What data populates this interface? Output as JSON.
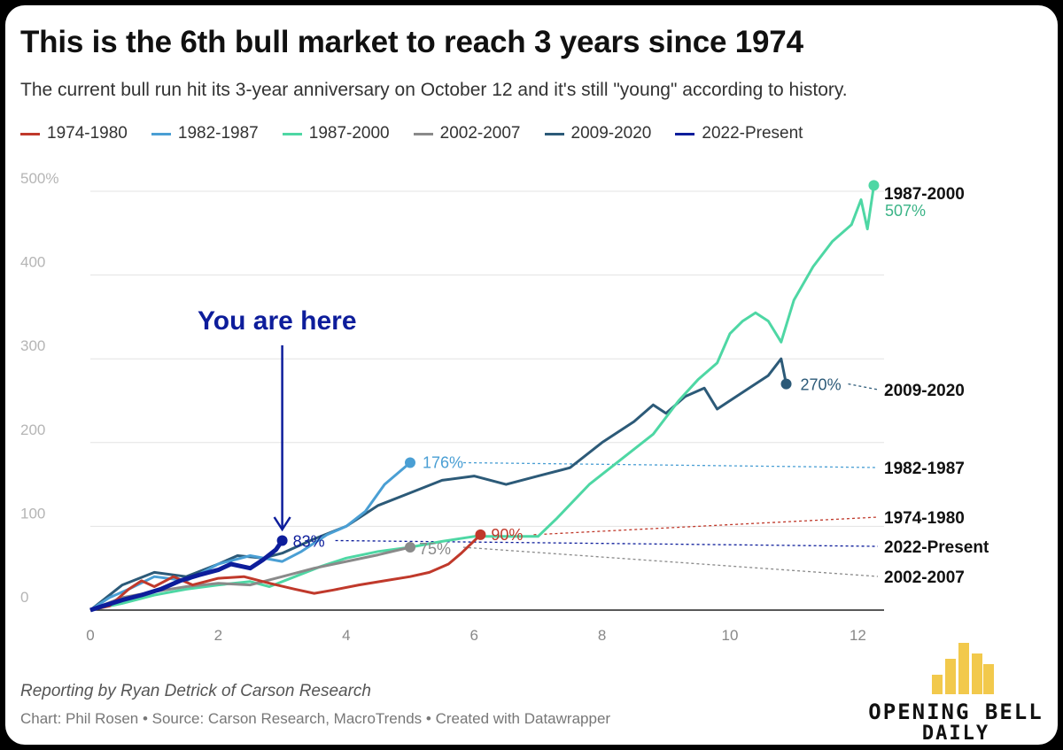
{
  "header": {
    "title": "This is the 6th bull market to reach 3 years since 1974",
    "subtitle": "The current bull run hit its 3-year anniversary on October 12 and it's still \"young\" according to history."
  },
  "footer": {
    "credit": "Reporting by Ryan Detrick of Carson Research",
    "source": "Chart: Phil Rosen • Source: Carson Research, MacroTrends • Created with Datawrapper"
  },
  "logo": {
    "line1": "OPENING BELL",
    "line2": "DAILY",
    "icon": "bar-chart-logo-icon",
    "color": "#f2c94c"
  },
  "chart_data": {
    "type": "line",
    "title": "This is the 6th bull market to reach 3 years since 1974",
    "subtitle": "The current bull run hit its 3-year anniversary on October 12 and it's still \"young\" according to history.",
    "xlabel": "",
    "ylabel": "",
    "xlim": [
      0,
      12.3
    ],
    "ylim": [
      0,
      500
    ],
    "x_ticks": [
      0,
      2,
      4,
      6,
      8,
      10,
      12
    ],
    "y_ticks": [
      {
        "value": 0,
        "label": "0"
      },
      {
        "value": 100,
        "label": "100"
      },
      {
        "value": 200,
        "label": "200"
      },
      {
        "value": 300,
        "label": "300"
      },
      {
        "value": 400,
        "label": "400"
      },
      {
        "value": 500,
        "label": "500%"
      }
    ],
    "grid": true,
    "legend_position": "top-left",
    "annotation": {
      "text": "You are here",
      "x": 3,
      "y": 83,
      "color": "#0d1d9b"
    },
    "series": [
      {
        "name": "1974-1980",
        "color": "#c0392b",
        "width": 3,
        "end_label": "90%",
        "right_label": "1974-1980",
        "projection_value": 118,
        "points": [
          [
            0,
            0
          ],
          [
            0.3,
            5
          ],
          [
            0.6,
            25
          ],
          [
            0.8,
            35
          ],
          [
            1,
            28
          ],
          [
            1.3,
            40
          ],
          [
            1.6,
            30
          ],
          [
            2,
            38
          ],
          [
            2.4,
            40
          ],
          [
            2.8,
            32
          ],
          [
            3.2,
            25
          ],
          [
            3.5,
            20
          ],
          [
            3.8,
            24
          ],
          [
            4.2,
            30
          ],
          [
            4.6,
            35
          ],
          [
            5,
            40
          ],
          [
            5.3,
            45
          ],
          [
            5.6,
            55
          ],
          [
            5.8,
            68
          ],
          [
            6.1,
            90
          ]
        ]
      },
      {
        "name": "1982-1987",
        "color": "#4a9fd4",
        "width": 3,
        "end_label": "176%",
        "right_label": "1982-1987",
        "projection_value": 176,
        "points": [
          [
            0,
            0
          ],
          [
            0.3,
            15
          ],
          [
            0.6,
            25
          ],
          [
            1,
            40
          ],
          [
            1.5,
            35
          ],
          [
            2,
            55
          ],
          [
            2.5,
            65
          ],
          [
            3,
            58
          ],
          [
            3.3,
            70
          ],
          [
            3.7,
            90
          ],
          [
            4,
            100
          ],
          [
            4.3,
            118
          ],
          [
            4.6,
            150
          ],
          [
            5,
            176
          ]
        ]
      },
      {
        "name": "1987-2000",
        "color": "#4ed7a4",
        "width": 3,
        "end_label": "507%",
        "right_label": "1987-2000",
        "projection_value": 507,
        "points": [
          [
            0,
            0
          ],
          [
            0.5,
            8
          ],
          [
            1,
            18
          ],
          [
            1.5,
            25
          ],
          [
            2,
            30
          ],
          [
            2.5,
            34
          ],
          [
            2.8,
            28
          ],
          [
            3.2,
            40
          ],
          [
            3.6,
            52
          ],
          [
            4,
            62
          ],
          [
            4.5,
            70
          ],
          [
            5,
            75
          ],
          [
            5.5,
            82
          ],
          [
            6,
            88
          ],
          [
            6.5,
            88
          ],
          [
            7,
            88
          ],
          [
            7.3,
            110
          ],
          [
            7.8,
            150
          ],
          [
            8.3,
            180
          ],
          [
            8.8,
            210
          ],
          [
            9.2,
            250
          ],
          [
            9.5,
            275
          ],
          [
            9.8,
            295
          ],
          [
            10,
            330
          ],
          [
            10.2,
            345
          ],
          [
            10.4,
            355
          ],
          [
            10.6,
            345
          ],
          [
            10.8,
            320
          ],
          [
            11,
            370
          ],
          [
            11.3,
            410
          ],
          [
            11.6,
            440
          ],
          [
            11.9,
            460
          ],
          [
            12.05,
            490
          ],
          [
            12.15,
            455
          ],
          [
            12.25,
            507
          ]
        ]
      },
      {
        "name": "2002-2007",
        "color": "#8a8a8a",
        "width": 3,
        "end_label": "75%",
        "right_label": "2002-2007",
        "projection_value": 47,
        "points": [
          [
            0,
            0
          ],
          [
            0.5,
            15
          ],
          [
            1,
            22
          ],
          [
            1.5,
            28
          ],
          [
            2,
            32
          ],
          [
            2.5,
            30
          ],
          [
            3,
            40
          ],
          [
            3.5,
            50
          ],
          [
            4,
            58
          ],
          [
            4.5,
            66
          ],
          [
            5,
            75
          ]
        ]
      },
      {
        "name": "2009-2020",
        "color": "#2c5a78",
        "width": 3,
        "end_label": "270%",
        "right_label": "2009-2020",
        "projection_value": 270,
        "points": [
          [
            0,
            0
          ],
          [
            0.5,
            30
          ],
          [
            1,
            45
          ],
          [
            1.5,
            40
          ],
          [
            2,
            55
          ],
          [
            2.3,
            65
          ],
          [
            2.7,
            62
          ],
          [
            3,
            68
          ],
          [
            3.5,
            85
          ],
          [
            4,
            100
          ],
          [
            4.5,
            125
          ],
          [
            5,
            140
          ],
          [
            5.5,
            155
          ],
          [
            6,
            160
          ],
          [
            6.5,
            150
          ],
          [
            7,
            160
          ],
          [
            7.5,
            170
          ],
          [
            8,
            200
          ],
          [
            8.5,
            225
          ],
          [
            8.8,
            245
          ],
          [
            9,
            235
          ],
          [
            9.3,
            255
          ],
          [
            9.6,
            265
          ],
          [
            9.8,
            240
          ],
          [
            10,
            250
          ],
          [
            10.3,
            265
          ],
          [
            10.6,
            280
          ],
          [
            10.8,
            300
          ],
          [
            10.88,
            270
          ]
        ]
      },
      {
        "name": "2022-Present",
        "color": "#0d1d9b",
        "width": 5,
        "end_label": "83%",
        "right_label": "2022-Present",
        "projection_value": 83,
        "points": [
          [
            0,
            0
          ],
          [
            0.2,
            5
          ],
          [
            0.5,
            12
          ],
          [
            0.8,
            18
          ],
          [
            1.1,
            25
          ],
          [
            1.4,
            35
          ],
          [
            1.7,
            42
          ],
          [
            2,
            48
          ],
          [
            2.2,
            55
          ],
          [
            2.5,
            50
          ],
          [
            2.7,
            60
          ],
          [
            2.9,
            72
          ],
          [
            3,
            83
          ]
        ]
      }
    ]
  }
}
